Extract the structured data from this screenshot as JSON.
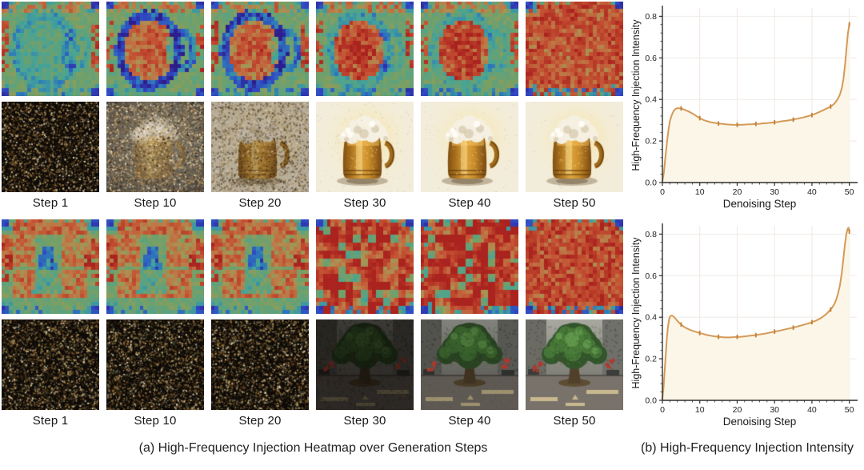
{
  "panel_a": {
    "caption": "(a) High-Frequency Injection Heatmap over Generation Steps",
    "blocks": [
      {
        "subject": "beer-mug-generation",
        "steps": [
          1,
          10,
          20,
          30,
          40,
          50
        ],
        "step_labels": [
          "Step 1",
          "Step 10",
          "Step 20",
          "Step 30",
          "Step 40",
          "Step 50"
        ],
        "heatmaps": [
          {
            "step": 1,
            "pattern": "mug",
            "blob": 0.1,
            "ring": 0.22,
            "cool": 0.16,
            "seed": 11
          },
          {
            "step": 10,
            "pattern": "mug",
            "blob": 0.46,
            "ring": 0.5,
            "cool": 0,
            "seed": 12
          },
          {
            "step": 20,
            "pattern": "mug",
            "blob": 0.48,
            "ring": 0.46,
            "cool": 0,
            "seed": 13
          },
          {
            "step": 30,
            "pattern": "mug",
            "blob": 0.62,
            "ring": 0.22,
            "cool": 0,
            "seed": 14
          },
          {
            "step": 40,
            "pattern": "mug",
            "blob": 0.66,
            "ring": 0.16,
            "cool": 0,
            "seed": 15
          },
          {
            "step": 50,
            "pattern": "full",
            "blob": 0.44,
            "ring": 0,
            "cool": 0,
            "seed": 16
          }
        ],
        "images": [
          {
            "step": 1,
            "kind": "noise",
            "seed": 31,
            "green": false
          },
          {
            "step": 10,
            "kind": "mug",
            "seed": 32,
            "clarity": 0.12
          },
          {
            "step": 20,
            "kind": "mug",
            "seed": 33,
            "clarity": 0.42
          },
          {
            "step": 30,
            "kind": "mug",
            "seed": 34,
            "clarity": 0.8
          },
          {
            "step": 40,
            "kind": "mug",
            "seed": 35,
            "clarity": 0.9
          },
          {
            "step": 50,
            "kind": "mug",
            "seed": 36,
            "clarity": 1.0
          }
        ]
      },
      {
        "subject": "tree-generation",
        "steps": [
          1,
          10,
          20,
          30,
          40,
          50
        ],
        "step_labels": [
          "Step 1",
          "Step 10",
          "Step 20",
          "Step 30",
          "Step 40",
          "Step 50"
        ],
        "heatmaps": [
          {
            "step": 1,
            "pattern": "tree",
            "blob": 0.34,
            "ring": 0,
            "cool": 0.3,
            "seed": 22
          },
          {
            "step": 10,
            "pattern": "tree",
            "blob": 0.34,
            "ring": 0,
            "cool": 0.3,
            "seed": 22
          },
          {
            "step": 20,
            "pattern": "tree",
            "blob": 0.35,
            "ring": 0,
            "cool": 0.3,
            "seed": 22
          },
          {
            "step": 30,
            "pattern": "blocky",
            "blob": 0.52,
            "ring": 0,
            "cool": 0,
            "seed": 24
          },
          {
            "step": 40,
            "pattern": "blocky",
            "blob": 0.56,
            "ring": 0,
            "cool": 0,
            "seed": 25
          },
          {
            "step": 50,
            "pattern": "full",
            "blob": 0.48,
            "ring": 0,
            "cool": 0,
            "seed": 26
          }
        ],
        "images": [
          {
            "step": 1,
            "kind": "noise",
            "seed": 41,
            "green": true
          },
          {
            "step": 10,
            "kind": "noise",
            "seed": 42,
            "green": true
          },
          {
            "step": 20,
            "kind": "noise",
            "seed": 43,
            "green": true
          },
          {
            "step": 30,
            "kind": "tree",
            "seed": 44,
            "brightness": 0.5
          },
          {
            "step": 40,
            "kind": "tree",
            "seed": 45,
            "brightness": 0.78
          },
          {
            "step": 50,
            "kind": "tree",
            "seed": 46,
            "brightness": 1.0
          }
        ]
      }
    ]
  },
  "panel_b": {
    "caption": "(b) High-Frequency Injection Intensity"
  },
  "chart_data": [
    {
      "type": "area",
      "title": "",
      "xlabel": "Denoising Step",
      "ylabel": "High-Frequency Injection Intensity",
      "xlim": [
        0,
        52
      ],
      "ylim": [
        0,
        0.84
      ],
      "xticks": [
        0,
        10,
        20,
        30,
        40,
        50
      ],
      "yticks": [
        0.0,
        0.2,
        0.4,
        0.6,
        0.8
      ],
      "grid": true,
      "legend": "none",
      "line_color": "#d49a58",
      "marker_color": "#c4853e",
      "fill_color": "#fbf6e7",
      "curve": [
        [
          0,
          0.005
        ],
        [
          0.4,
          0.05
        ],
        [
          0.8,
          0.12
        ],
        [
          1.2,
          0.19
        ],
        [
          1.6,
          0.25
        ],
        [
          2,
          0.295
        ],
        [
          2.5,
          0.325
        ],
        [
          3,
          0.345
        ],
        [
          3.5,
          0.354
        ],
        [
          4,
          0.358
        ],
        [
          5,
          0.357
        ],
        [
          6,
          0.35
        ],
        [
          7,
          0.342
        ],
        [
          8,
          0.333
        ],
        [
          9,
          0.321
        ],
        [
          10,
          0.31
        ],
        [
          11,
          0.301
        ],
        [
          12,
          0.295
        ],
        [
          13,
          0.29
        ],
        [
          14,
          0.287
        ],
        [
          15,
          0.284
        ],
        [
          16,
          0.282
        ],
        [
          17,
          0.28
        ],
        [
          18,
          0.279
        ],
        [
          19,
          0.278
        ],
        [
          20,
          0.278
        ],
        [
          21,
          0.278
        ],
        [
          22,
          0.279
        ],
        [
          23,
          0.28
        ],
        [
          24,
          0.281
        ],
        [
          25,
          0.282
        ],
        [
          26,
          0.283
        ],
        [
          27,
          0.285
        ],
        [
          28,
          0.286
        ],
        [
          29,
          0.288
        ],
        [
          30,
          0.29
        ],
        [
          31,
          0.292
        ],
        [
          32,
          0.295
        ],
        [
          33,
          0.297
        ],
        [
          34,
          0.3
        ],
        [
          35,
          0.303
        ],
        [
          36,
          0.307
        ],
        [
          37,
          0.311
        ],
        [
          38,
          0.315
        ],
        [
          39,
          0.32
        ],
        [
          40,
          0.325
        ],
        [
          41,
          0.332
        ],
        [
          42,
          0.34
        ],
        [
          43,
          0.348
        ],
        [
          44,
          0.357
        ],
        [
          45,
          0.366
        ],
        [
          45.5,
          0.372
        ],
        [
          46,
          0.38
        ],
        [
          46.5,
          0.391
        ],
        [
          47,
          0.405
        ],
        [
          47.5,
          0.425
        ],
        [
          48,
          0.455
        ],
        [
          48.4,
          0.495
        ],
        [
          48.8,
          0.555
        ],
        [
          49.2,
          0.635
        ],
        [
          49.6,
          0.715
        ],
        [
          50,
          0.762
        ]
      ],
      "markers": [
        [
          5,
          0.357
        ],
        [
          10,
          0.31
        ],
        [
          15,
          0.284
        ],
        [
          20,
          0.278
        ],
        [
          25,
          0.282
        ],
        [
          30,
          0.29
        ],
        [
          35,
          0.303
        ],
        [
          40,
          0.325
        ],
        [
          45,
          0.366
        ],
        [
          50,
          0.762
        ]
      ]
    },
    {
      "type": "area",
      "title": "",
      "xlabel": "Denoising Step",
      "ylabel": "High-Frequency Injection Intensity",
      "xlim": [
        0,
        52
      ],
      "ylim": [
        0,
        0.84
      ],
      "xticks": [
        0,
        10,
        20,
        30,
        40,
        50
      ],
      "yticks": [
        0.0,
        0.2,
        0.4,
        0.6,
        0.8
      ],
      "grid": true,
      "legend": "none",
      "line_color": "#d49a58",
      "marker_color": "#c4853e",
      "fill_color": "#fbf6e7",
      "curve": [
        [
          0,
          0.005
        ],
        [
          0.3,
          0.06
        ],
        [
          0.6,
          0.14
        ],
        [
          0.9,
          0.22
        ],
        [
          1.2,
          0.3
        ],
        [
          1.5,
          0.355
        ],
        [
          1.8,
          0.39
        ],
        [
          2.1,
          0.405
        ],
        [
          2.5,
          0.408
        ],
        [
          3,
          0.403
        ],
        [
          3.5,
          0.393
        ],
        [
          4,
          0.383
        ],
        [
          4.5,
          0.373
        ],
        [
          5,
          0.365
        ],
        [
          6,
          0.351
        ],
        [
          7,
          0.342
        ],
        [
          8,
          0.335
        ],
        [
          9,
          0.329
        ],
        [
          10,
          0.324
        ],
        [
          11,
          0.319
        ],
        [
          12,
          0.314
        ],
        [
          13,
          0.311
        ],
        [
          14,
          0.308
        ],
        [
          15,
          0.306
        ],
        [
          16,
          0.304
        ],
        [
          17,
          0.303
        ],
        [
          18,
          0.303
        ],
        [
          19,
          0.304
        ],
        [
          20,
          0.305
        ],
        [
          21,
          0.306
        ],
        [
          22,
          0.308
        ],
        [
          23,
          0.31
        ],
        [
          24,
          0.312
        ],
        [
          25,
          0.314
        ],
        [
          26,
          0.317
        ],
        [
          27,
          0.32
        ],
        [
          28,
          0.323
        ],
        [
          29,
          0.327
        ],
        [
          30,
          0.331
        ],
        [
          31,
          0.334
        ],
        [
          32,
          0.338
        ],
        [
          33,
          0.342
        ],
        [
          34,
          0.346
        ],
        [
          35,
          0.35
        ],
        [
          36,
          0.355
        ],
        [
          37,
          0.36
        ],
        [
          38,
          0.365
        ],
        [
          39,
          0.37
        ],
        [
          40,
          0.376
        ],
        [
          41,
          0.383
        ],
        [
          42,
          0.392
        ],
        [
          43,
          0.403
        ],
        [
          44,
          0.418
        ],
        [
          45,
          0.437
        ],
        [
          45.5,
          0.449
        ],
        [
          46,
          0.464
        ],
        [
          46.5,
          0.485
        ],
        [
          47,
          0.515
        ],
        [
          47.5,
          0.555
        ],
        [
          48,
          0.615
        ],
        [
          48.4,
          0.68
        ],
        [
          48.8,
          0.745
        ],
        [
          49.2,
          0.8
        ],
        [
          49.6,
          0.828
        ],
        [
          49.8,
          0.83
        ],
        [
          50,
          0.812
        ]
      ],
      "markers": [
        [
          5,
          0.365
        ],
        [
          10,
          0.324
        ],
        [
          15,
          0.306
        ],
        [
          20,
          0.305
        ],
        [
          25,
          0.314
        ],
        [
          30,
          0.331
        ],
        [
          35,
          0.35
        ],
        [
          40,
          0.376
        ],
        [
          45,
          0.437
        ],
        [
          50,
          0.812
        ]
      ]
    }
  ]
}
